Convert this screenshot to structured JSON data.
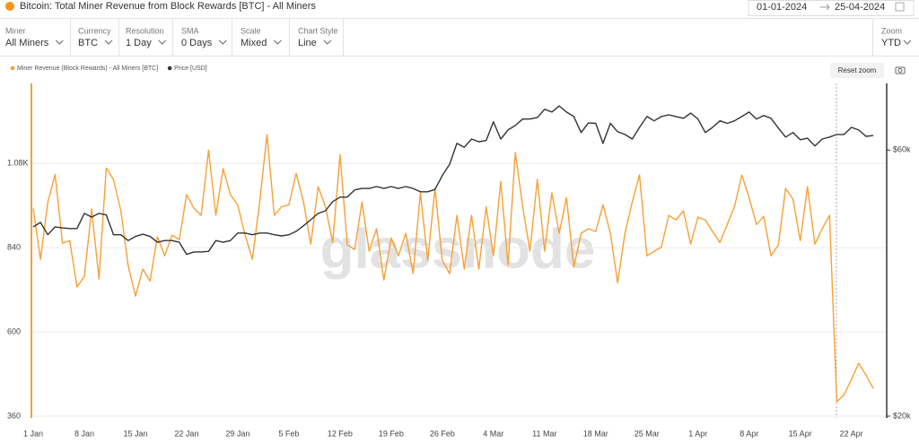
{
  "header": {
    "title": "Bitcoin: Total Miner Revenue from Block Rewards [BTC] - All Miners",
    "date_from": "01-01-2024",
    "date_to": "25-04-2024"
  },
  "controls": [
    {
      "label": "Miner",
      "value": "All Miners"
    },
    {
      "label": "Currency",
      "value": "BTC"
    },
    {
      "label": "Resolution",
      "value": "1 Day"
    },
    {
      "label": "SMA",
      "value": "0 Days"
    },
    {
      "label": "Scale",
      "value": "Mixed"
    },
    {
      "label": "Chart Style",
      "value": "Line"
    }
  ],
  "zoom": {
    "label": "Zoom",
    "value": "YTD"
  },
  "reset_zoom": "Reset zoom",
  "chart_data": {
    "type": "line",
    "watermark": "glassnode",
    "categories": [
      "1 Jan",
      null,
      null,
      null,
      null,
      null,
      null,
      "8 Jan",
      null,
      null,
      null,
      null,
      null,
      null,
      "15 Jan",
      null,
      null,
      null,
      null,
      null,
      null,
      "22 Jan",
      null,
      null,
      null,
      null,
      null,
      null,
      "29 Jan",
      null,
      null,
      null,
      null,
      null,
      null,
      "5 Feb",
      null,
      null,
      null,
      null,
      null,
      null,
      "12 Feb",
      null,
      null,
      null,
      null,
      null,
      null,
      "19 Feb",
      null,
      null,
      null,
      null,
      null,
      null,
      "26 Feb",
      null,
      null,
      null,
      null,
      null,
      null,
      "4 Mar",
      null,
      null,
      null,
      null,
      null,
      null,
      "11 Mar",
      null,
      null,
      null,
      null,
      null,
      null,
      "18 Mar",
      null,
      null,
      null,
      null,
      null,
      null,
      "25 Mar",
      null,
      null,
      null,
      null,
      null,
      null,
      "1 Apr",
      null,
      null,
      null,
      null,
      null,
      null,
      "8 Apr",
      null,
      null,
      null,
      null,
      null,
      null,
      "15 Apr",
      null,
      null,
      null,
      null,
      null,
      null,
      "22 Apr",
      null,
      null,
      null
    ],
    "series": [
      {
        "name": "Miner Revenue (Block Rewards) - All Miners [BTC]",
        "color": "#f7a035",
        "values": [
          952,
          807,
          970,
          1049,
          853,
          860,
          728,
          758,
          950,
          751,
          1067,
          1034,
          945,
          789,
          702,
          779,
          745,
          871,
          817,
          876,
          863,
          991,
          952,
          932,
          1118,
          932,
          1065,
          991,
          962,
          876,
          807,
          970,
          1162,
          932,
          957,
          962,
          1052,
          970,
          850,
          1014,
          957,
          855,
          1105,
          848,
          835,
          970,
          830,
          894,
          748,
          868,
          817,
          881,
          766,
          996,
          804,
          1009,
          804,
          766,
          932,
          779,
          932,
          779,
          957,
          817,
          1029,
          791,
          1111,
          957,
          830,
          1034,
          830,
          996,
          881,
          983,
          784,
          881,
          894,
          886,
          962,
          881,
          740,
          881,
          970,
          1047,
          817,
          830,
          842,
          932,
          919,
          945,
          850,
          927,
          919,
          886,
          855,
          906,
          957,
          1047,
          983,
          906,
          929,
          817,
          848,
          1009,
          978,
          860,
          1014,
          850,
          894,
          932,
          401,
          421,
          465,
          511,
          477,
          439
        ]
      },
      {
        "name": "Price [USD]",
        "color": "#333333",
        "axis": "y2",
        "values": [
          43700,
          44500,
          42300,
          43700,
          43500,
          43400,
          43400,
          46200,
          45500,
          46200,
          45900,
          42300,
          42300,
          41300,
          42000,
          42400,
          42000,
          41000,
          41300,
          41300,
          41000,
          39000,
          39400,
          39400,
          39500,
          41300,
          41000,
          41300,
          42600,
          42600,
          42300,
          42600,
          42600,
          42300,
          42100,
          42300,
          42900,
          43900,
          45000,
          46200,
          46700,
          48500,
          49400,
          49400,
          50900,
          51200,
          51200,
          51600,
          51200,
          51600,
          51200,
          51600,
          51200,
          50500,
          50500,
          51000,
          54000,
          56600,
          61700,
          60700,
          62800,
          62100,
          62400,
          67400,
          62800,
          65200,
          66400,
          68200,
          68200,
          68600,
          71000,
          70200,
          72000,
          70200,
          68900,
          64500,
          67100,
          67000,
          61700,
          67000,
          64700,
          64000,
          62800,
          65900,
          68900,
          67700,
          68900,
          69400,
          68900,
          68400,
          69900,
          68200,
          64500,
          65900,
          67700,
          67000,
          67700,
          68900,
          70200,
          68200,
          69200,
          68400,
          65700,
          63300,
          64500,
          62600,
          63000,
          61000,
          62800,
          63300,
          64000,
          64000,
          65900,
          65200,
          63500,
          63700
        ]
      }
    ],
    "ylim": [
      360,
      1308
    ],
    "yticks": [
      360,
      600,
      840,
      {
        "value": 1080,
        "label": "1.08K"
      }
    ],
    "y2lim": [
      20000,
      79000
    ],
    "y2log": true,
    "y2ticks": [
      {
        "value": 20000,
        "label": "$20k"
      },
      {
        "value": 60000,
        "label": "$60k"
      }
    ],
    "grid": true
  }
}
